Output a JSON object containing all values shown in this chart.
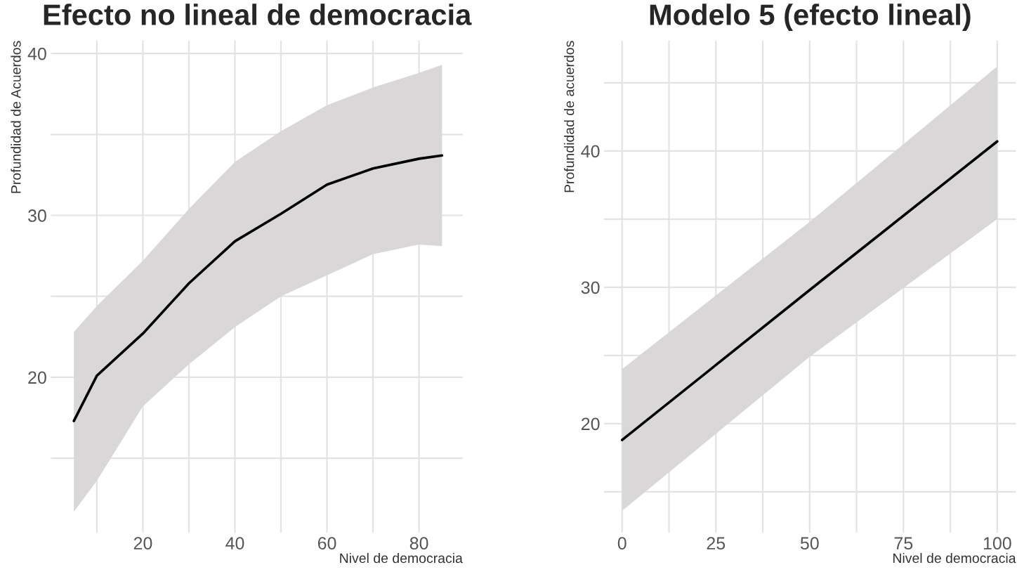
{
  "chart_data": [
    {
      "type": "line",
      "title": "Efecto no lineal de democracia",
      "xlabel": "Nivel de democracia",
      "ylabel": "Profundidad de Acuerdos",
      "xlim": [
        0,
        89.5
      ],
      "ylim": [
        10.4,
        40.8
      ],
      "xticks": [
        {
          "value": 10,
          "label": null
        },
        20,
        {
          "value": 30,
          "label": null
        },
        40,
        {
          "value": 50,
          "label": null
        },
        60,
        {
          "value": 70,
          "label": null
        },
        80
      ],
      "yticks": [
        {
          "value": 15,
          "label": null
        },
        20,
        {
          "value": 25,
          "label": null
        },
        30,
        {
          "value": 35,
          "label": null
        },
        40
      ],
      "grid": true,
      "x": [
        5,
        10,
        20,
        30,
        40,
        50,
        60,
        70,
        80,
        85
      ],
      "series": [
        {
          "color": "#000000",
          "values": [
            17.3,
            20.1,
            22.7,
            25.8,
            28.4,
            30.1,
            31.9,
            32.9,
            33.5,
            33.7
          ],
          "lower": [
            11.7,
            13.6,
            18.2,
            20.8,
            23.1,
            25.0,
            26.3,
            27.6,
            28.2,
            28.1
          ],
          "upper": [
            22.8,
            24.4,
            27.2,
            30.4,
            33.3,
            35.2,
            36.8,
            37.9,
            38.8,
            39.3
          ]
        }
      ]
    },
    {
      "type": "line",
      "title": "Modelo 5 (efecto lineal)",
      "xlabel": "Nivel de democracia",
      "ylabel": "Profundidad de acuerdos",
      "xlim": [
        -4.8,
        105
      ],
      "ylim": [
        12.0,
        48.1
      ],
      "xticks": [
        0,
        {
          "value": 12.5,
          "label": null
        },
        25,
        {
          "value": 37.5,
          "label": null
        },
        50,
        {
          "value": 62.5,
          "label": null
        },
        75,
        {
          "value": 87.5,
          "label": null
        },
        100
      ],
      "yticks": [
        {
          "value": 15,
          "label": null
        },
        20,
        {
          "value": 25,
          "label": null
        },
        30,
        {
          "value": 35,
          "label": null
        },
        40,
        {
          "value": 45,
          "label": null
        }
      ],
      "grid": true,
      "x": [
        0,
        50,
        100
      ],
      "series": [
        {
          "color": "#000000",
          "values": [
            18.8,
            29.8,
            40.7
          ],
          "lower": [
            13.6,
            24.9,
            35.0
          ],
          "upper": [
            24.0,
            34.8,
            46.2
          ]
        }
      ]
    }
  ]
}
